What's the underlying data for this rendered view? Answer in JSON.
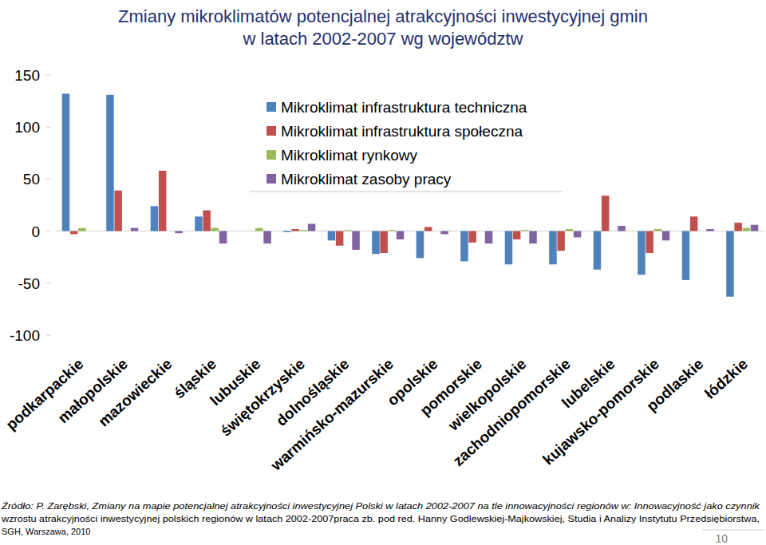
{
  "chart_data": {
    "type": "bar",
    "title": [
      "Zmiany mikroklimatów potencjalnej atrakcyjności inwestycyjnej gmin",
      "w latach 2002-2007 wg województw"
    ],
    "categories": [
      "podkarpackie",
      "małopolskie",
      "mazowieckie",
      "śląskie",
      "lubuskie",
      "świętokrzyskie",
      "dolnośląskie",
      "warmińsko-mazurskie",
      "opolskie",
      "pomorskie",
      "wielkopolskie",
      "zachodniopomorskie",
      "lubelskie",
      "kujawsko-pomorskie",
      "podlaskie",
      "łódzkie"
    ],
    "series": [
      {
        "name": "Mikroklimat infrastruktura techniczna",
        "color": "#4f81bd",
        "values": [
          132,
          131,
          24,
          14,
          0,
          -1,
          -9,
          -22,
          -26,
          -29,
          -32,
          -32,
          -37,
          -42,
          -47,
          -63
        ]
      },
      {
        "name": "Mikroklimat infrastruktura społeczna",
        "color": "#c0504d",
        "values": [
          -3,
          39,
          58,
          20,
          0,
          2,
          -14,
          -21,
          4,
          -11,
          -8,
          -19,
          34,
          -21,
          14,
          8
        ]
      },
      {
        "name": "Mikroklimat rynkowy",
        "color": "#9bbb59",
        "values": [
          3,
          0,
          0,
          3,
          3,
          1,
          1,
          1,
          0,
          0,
          1,
          2,
          0,
          2,
          0,
          3
        ]
      },
      {
        "name": "Mikroklimat zasoby pracy",
        "color": "#8064a2",
        "values": [
          0,
          3,
          -2,
          -12,
          -12,
          7,
          -18,
          -8,
          -3,
          -12,
          -12,
          -6,
          5,
          -9,
          2,
          6
        ]
      }
    ],
    "ylim": [
      -100,
      150
    ],
    "yticks": [
      -100,
      -50,
      0,
      50,
      100,
      150
    ],
    "grid": false,
    "legend": "top",
    "source": [
      "Źródło: P. Zarębski, Zmiany na mapie potencjalnej atrakcyjności inwestycyjnej Polski w latach 2002-2007 na tle innowacyjności regionów w: Innowacyjność jako czynnik",
      "wzrostu atrakcyjności inwestycyjnej polskich regionów w latach 2002-2007praca zb. pod red. Hanny Godlewskiej-Majkowskiej, Studia i Analizy Instytutu Przedsiębiorstwa,",
      "SGH, Warszawa, 2010"
    ],
    "page_number": "10"
  }
}
